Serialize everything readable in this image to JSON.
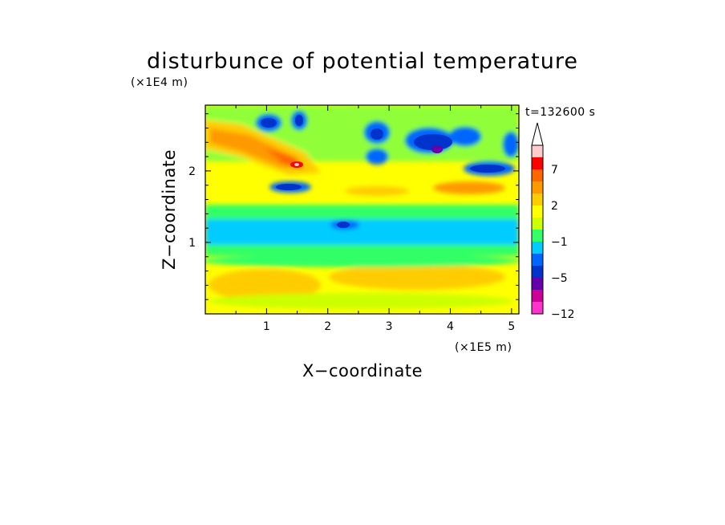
{
  "chart_data": {
    "type": "heatmap",
    "title": "disturbunce of potential temperature",
    "xlabel": "X−coordinate",
    "ylabel": "Z−coordinate",
    "x_unit": "(×1E5 m)",
    "y_unit": "(×1E4 m)",
    "time_label": "t=132600 s",
    "xlim": [
      0,
      5.12
    ],
    "ylim": [
      0,
      2.92
    ],
    "x_ticks": [
      "1",
      "2",
      "3",
      "4",
      "5"
    ],
    "y_ticks": [
      "1",
      "2"
    ],
    "colorbar": {
      "levels": [
        -12,
        -9,
        -7,
        -5,
        -3,
        -2,
        -1,
        0,
        1,
        2,
        3,
        5,
        7,
        9,
        12
      ],
      "labels": [
        "−12",
        "−5",
        "−1",
        "2",
        "7"
      ],
      "label_levels": [
        -12,
        -5,
        -1,
        2,
        7
      ],
      "colors": [
        "#ff33cc",
        "#cc0099",
        "#6600aa",
        "#0033cc",
        "#0066ff",
        "#00ccff",
        "#33ff66",
        "#ccff00",
        "#ffff00",
        "#ffcc00",
        "#ff9900",
        "#ff6600",
        "#ff0000",
        "#ffcccc"
      ],
      "extend": "max"
    },
    "features": [
      {
        "desc": "warm band",
        "x": [
          0.0,
          1.9
        ],
        "z": [
          2.0,
          2.6
        ],
        "value": 5
      },
      {
        "desc": "cold band",
        "x": [
          0.0,
          5.12
        ],
        "z": [
          0.9,
          1.4
        ],
        "value": -1
      },
      {
        "desc": "cold cells",
        "x": [
          3.0,
          5.12
        ],
        "z": [
          2.0,
          2.8
        ],
        "value": -5
      },
      {
        "desc": "cold core",
        "x": [
          3.7,
          3.9
        ],
        "z": [
          2.3,
          2.4
        ],
        "value": -9
      }
    ]
  }
}
